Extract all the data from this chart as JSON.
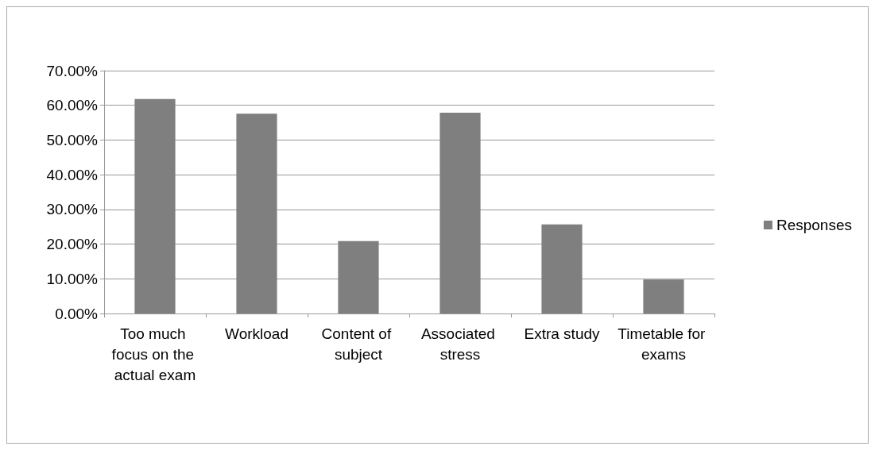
{
  "chart_data": {
    "type": "bar",
    "categories": [
      "Too much focus on the actual exam",
      "Workload",
      "Content of subject",
      "Associated stress",
      "Extra study",
      "Timetable for exams"
    ],
    "series": [
      {
        "name": "Responses",
        "color": "#7f7f7f",
        "values": [
          61.8,
          57.6,
          20.9,
          57.9,
          25.7,
          9.8
        ]
      }
    ],
    "ylim": [
      0,
      70
    ],
    "yticks": [
      {
        "value": 0,
        "label": "0.00%"
      },
      {
        "value": 10,
        "label": "10.00%"
      },
      {
        "value": 20,
        "label": "20.00%"
      },
      {
        "value": 30,
        "label": "30.00%"
      },
      {
        "value": 40,
        "label": "40.00%"
      },
      {
        "value": 50,
        "label": "50.00%"
      },
      {
        "value": 60,
        "label": "60.00%"
      },
      {
        "value": 70,
        "label": "70.00%"
      }
    ],
    "grid": "y",
    "legend": "right"
  }
}
